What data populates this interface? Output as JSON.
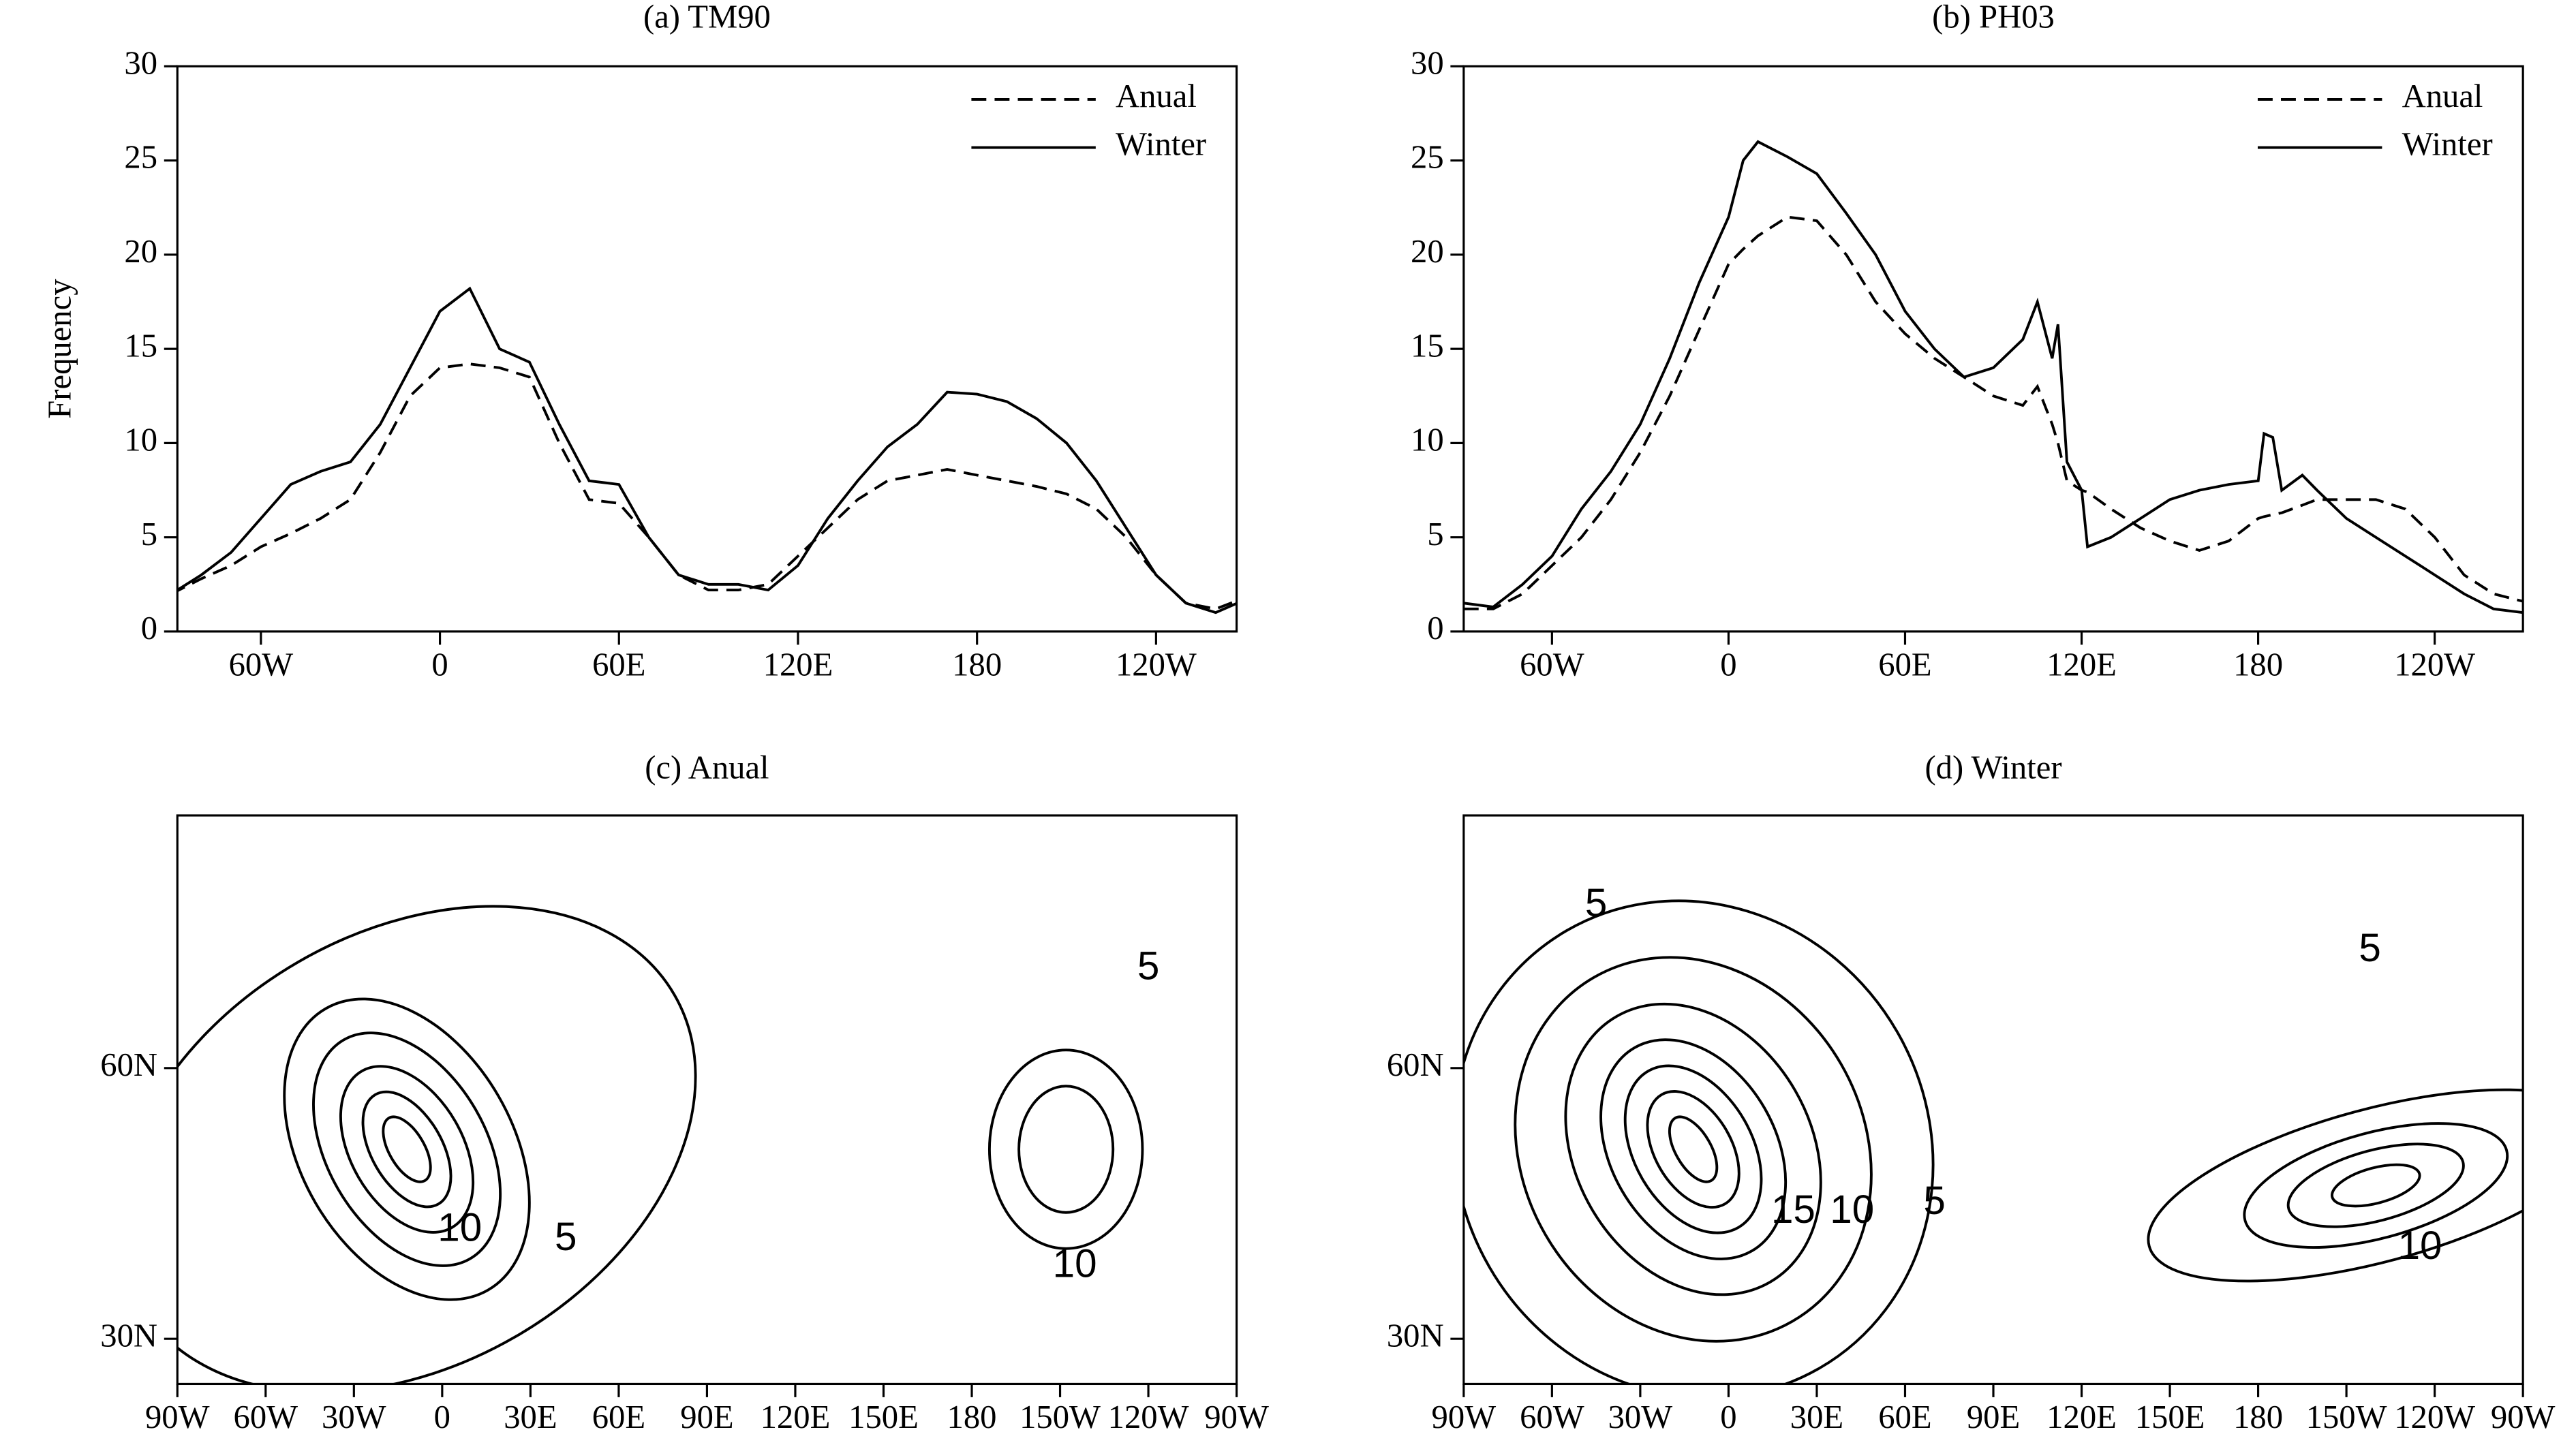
{
  "chart_data": [
    {
      "type": "line",
      "title": "(a) TM90",
      "ylabel": "Frequency",
      "legend": "upper right",
      "x": [
        -90,
        -80,
        -70,
        -60,
        -50,
        -40,
        -30,
        -20,
        -10,
        0,
        10,
        20,
        30,
        40,
        50,
        60,
        70,
        80,
        90,
        100,
        110,
        120,
        130,
        140,
        150,
        160,
        170,
        180,
        190,
        200,
        210,
        220,
        230,
        240,
        250,
        260,
        270
      ],
      "series": [
        {
          "name": "Anual",
          "color": "#000000",
          "dash": true,
          "values": [
            2,
            2.8,
            3.5,
            4.5,
            5.2,
            6,
            7,
            9.5,
            12.5,
            14,
            14.2,
            14,
            13.5,
            10,
            7,
            6.8,
            5,
            3,
            2.2,
            2.2,
            2.5,
            4,
            5.5,
            7,
            8,
            8.3,
            8.6,
            8.3,
            8,
            7.7,
            7.3,
            6.5,
            5,
            3,
            1.5,
            1.2,
            1.8
          ]
        },
        {
          "name": "Winter",
          "color": "#000000",
          "dash": false,
          "values": [
            2,
            3,
            4.2,
            6,
            7.8,
            8.5,
            9,
            11,
            14,
            17,
            18.2,
            15,
            14.3,
            11,
            8,
            7.8,
            5,
            3,
            2.5,
            2.5,
            2.2,
            3.5,
            6,
            8,
            9.8,
            11,
            12.7,
            12.6,
            12.2,
            11.3,
            10,
            8,
            5.5,
            3,
            1.5,
            1,
            1.7
          ]
        }
      ],
      "xlim": [
        -88,
        267
      ],
      "xticks": [
        {
          "value": -60,
          "label": "60W"
        },
        0,
        {
          "value": 60,
          "label": "60E"
        },
        {
          "value": 120,
          "label": "120E"
        },
        180,
        {
          "value": 240,
          "label": "120W"
        }
      ],
      "ylim": [
        0,
        30
      ],
      "yticks": [
        0,
        5,
        10,
        15,
        20,
        25,
        30
      ]
    },
    {
      "type": "line",
      "title": "(b) PH03",
      "legend": "upper right",
      "x": [
        -90,
        -80,
        -70,
        -60,
        -50,
        -40,
        -30,
        -20,
        -10,
        0,
        5,
        10,
        20,
        30,
        40,
        50,
        60,
        70,
        80,
        90,
        100,
        105,
        110,
        112,
        115,
        120,
        122,
        130,
        140,
        150,
        160,
        170,
        180,
        182,
        185,
        188,
        195,
        200,
        210,
        220,
        230,
        240,
        250,
        260,
        270
      ],
      "series": [
        {
          "name": "Anual",
          "color": "#000000",
          "dash": true,
          "values": [
            1.2,
            1.2,
            2,
            3.5,
            5,
            7,
            9.5,
            12.5,
            16,
            19.5,
            20.3,
            21,
            22,
            21.8,
            20,
            17.5,
            15.8,
            14.5,
            13.5,
            12.5,
            12,
            13,
            11,
            10,
            8,
            7.5,
            7.4,
            6.5,
            5.5,
            4.8,
            4.3,
            4.8,
            6,
            6.1,
            6.2,
            6.3,
            6.7,
            7,
            7,
            7,
            6.5,
            5,
            3,
            2,
            1.6
          ]
        },
        {
          "name": "Winter",
          "color": "#000000",
          "dash": false,
          "values": [
            1.5,
            1.3,
            2.5,
            4,
            6.5,
            8.5,
            11,
            14.5,
            18.5,
            22,
            25,
            26,
            25.2,
            24.3,
            22.2,
            20,
            17,
            15,
            13.5,
            14,
            15.5,
            17.5,
            14.5,
            16.3,
            9,
            7.5,
            4.5,
            5,
            6,
            7,
            7.5,
            7.8,
            8,
            10.5,
            10.3,
            7.5,
            8.3,
            7.5,
            6,
            5,
            4,
            3,
            2,
            1.2,
            1
          ]
        }
      ],
      "xlim": [
        -90,
        270
      ],
      "xticks": [
        {
          "value": -60,
          "label": "60W"
        },
        0,
        {
          "value": 60,
          "label": "60E"
        },
        {
          "value": 120,
          "label": "120E"
        },
        180,
        {
          "value": 240,
          "label": "120W"
        }
      ],
      "ylim": [
        0,
        30
      ],
      "yticks": [
        0,
        5,
        10,
        15,
        20,
        25,
        30
      ]
    },
    {
      "type": "contour",
      "title": "(c) Anual",
      "contour_levels": [
        5,
        10,
        15,
        20,
        25,
        30
      ],
      "contour_labels": [
        5,
        10,
        5,
        10
      ],
      "xlim": [
        -90,
        270
      ],
      "xticks": [
        {
          "value": -90,
          "label": "90W"
        },
        {
          "value": -60,
          "label": "60W"
        },
        {
          "value": -30,
          "label": "30W"
        },
        0,
        {
          "value": 30,
          "label": "30E"
        },
        {
          "value": 60,
          "label": "60E"
        },
        {
          "value": 90,
          "label": "90E"
        },
        {
          "value": 120,
          "label": "120E"
        },
        {
          "value": 150,
          "label": "150E"
        },
        180,
        {
          "value": 210,
          "label": "150W"
        },
        {
          "value": 240,
          "label": "120W"
        },
        {
          "value": 270,
          "label": "90W"
        }
      ],
      "ylim": [
        25,
        88
      ],
      "yticks": [
        {
          "value": 30,
          "label": "30N"
        },
        {
          "value": 60,
          "label": "60N"
        }
      ]
    },
    {
      "type": "contour",
      "title": "(d) Winter",
      "contour_levels": [
        5,
        10,
        15,
        20,
        25,
        30,
        35
      ],
      "contour_labels": [
        5,
        15,
        10,
        5,
        5,
        10
      ],
      "xlim": [
        -90,
        270
      ],
      "xticks": [
        {
          "value": -90,
          "label": "90W"
        },
        {
          "value": -60,
          "label": "60W"
        },
        {
          "value": -30,
          "label": "30W"
        },
        0,
        {
          "value": 30,
          "label": "30E"
        },
        {
          "value": 60,
          "label": "60E"
        },
        {
          "value": 90,
          "label": "90E"
        },
        {
          "value": 120,
          "label": "120E"
        },
        {
          "value": 150,
          "label": "150E"
        },
        180,
        {
          "value": 210,
          "label": "150W"
        },
        {
          "value": 240,
          "label": "120W"
        },
        {
          "value": 270,
          "label": "90W"
        }
      ],
      "ylim": [
        25,
        88
      ],
      "yticks": [
        {
          "value": 30,
          "label": "30N"
        },
        {
          "value": 60,
          "label": "60N"
        }
      ]
    }
  ]
}
